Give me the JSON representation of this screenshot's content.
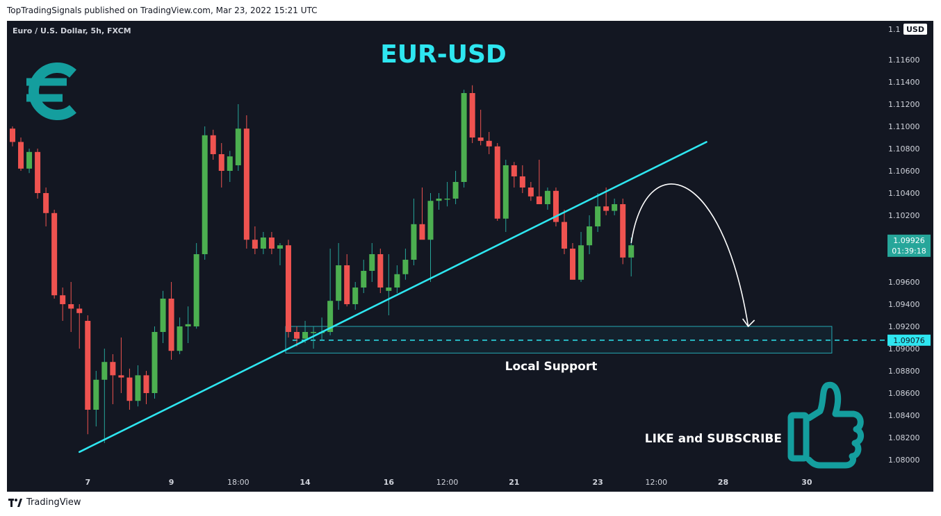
{
  "header": {
    "published_line": "TopTradingSignals published on TradingView.com, Mar 23, 2022 15:21 UTC"
  },
  "footer": {
    "brand": "TradingView"
  },
  "symbol_label": "Euro / U.S. Dollar, 5h, FXCM",
  "currency_badge": "USD",
  "icons": {
    "currency": "euro-icon",
    "like": "thumbs-up-icon",
    "brand": "tradingview-logo-icon"
  },
  "colors": {
    "background": "#131722",
    "up": "#26a69a",
    "up_body": "#4caf50",
    "down": "#ef5350",
    "trendline": "#2ee6f0",
    "annotation_title": "#2ee6f0",
    "euro_icon": "#149e9e"
  },
  "annotations": {
    "title": "EUR-USD",
    "support_label": "Local Support",
    "like_label": "LIKE and SUBSCRIBE"
  },
  "chart_data": {
    "type": "candlestick",
    "title": "",
    "xlabel": "",
    "ylabel": "",
    "ylim": [
      1.079,
      1.1195
    ],
    "grid": false,
    "y_ticks": [
      "1.11600",
      "1.11400",
      "1.11200",
      "1.11000",
      "1.10800",
      "1.10600",
      "1.10400",
      "1.10200",
      "1.10000",
      "1.09600",
      "1.09400",
      "1.09200",
      "1.09000",
      "1.08800",
      "1.08600",
      "1.08400",
      "1.08200",
      "1.08000"
    ],
    "y_tick_top_partial": "1.1",
    "x_ticks": [
      {
        "label": "7",
        "bar": 9
      },
      {
        "label": "9",
        "bar": 19
      },
      {
        "label": "18:00",
        "bar": 27
      },
      {
        "label": "14",
        "bar": 35
      },
      {
        "label": "16",
        "bar": 45
      },
      {
        "label": "12:00",
        "bar": 52
      },
      {
        "label": "21",
        "bar": 60
      },
      {
        "label": "23",
        "bar": 70
      },
      {
        "label": "12:00",
        "bar": 77
      },
      {
        "label": "28",
        "bar": 85
      },
      {
        "label": "30",
        "bar": 95
      }
    ],
    "candles": [
      [
        1.1098,
        1.11,
        1.1082,
        1.1086
      ],
      [
        1.1086,
        1.109,
        1.106,
        1.1062
      ],
      [
        1.1062,
        1.108,
        1.1058,
        1.1077
      ],
      [
        1.1077,
        1.108,
        1.1035,
        1.104
      ],
      [
        1.104,
        1.1045,
        1.101,
        1.1022
      ],
      [
        1.1022,
        1.1025,
        1.0945,
        1.0948
      ],
      [
        1.0948,
        1.0955,
        1.0925,
        1.094
      ],
      [
        1.094,
        1.096,
        1.0915,
        1.0936
      ],
      [
        1.0936,
        1.094,
        1.09,
        1.0932
      ],
      [
        1.0925,
        1.093,
        1.0823,
        1.0845
      ],
      [
        1.0845,
        1.088,
        1.083,
        1.0872
      ],
      [
        1.0872,
        1.09,
        1.0815,
        1.0888
      ],
      [
        1.0888,
        1.0895,
        1.085,
        1.0876
      ],
      [
        1.0876,
        1.091,
        1.086,
        1.0874
      ],
      [
        1.0874,
        1.0882,
        1.0845,
        1.0853
      ],
      [
        1.0853,
        1.0885,
        1.0848,
        1.0876
      ],
      [
        1.0876,
        1.088,
        1.085,
        1.086
      ],
      [
        1.086,
        1.092,
        1.0855,
        1.0915
      ],
      [
        1.0915,
        1.0952,
        1.0905,
        1.0945
      ],
      [
        1.0945,
        1.096,
        1.089,
        1.0898
      ],
      [
        1.0898,
        1.0928,
        1.0895,
        1.092
      ],
      [
        1.092,
        1.0938,
        1.0905,
        1.0922
      ],
      [
        1.092,
        1.0995,
        1.0918,
        1.0985
      ],
      [
        1.0985,
        1.11,
        1.098,
        1.1092
      ],
      [
        1.1092,
        1.1097,
        1.107,
        1.1075
      ],
      [
        1.1075,
        1.1085,
        1.1045,
        1.106
      ],
      [
        1.106,
        1.1078,
        1.105,
        1.1073
      ],
      [
        1.1065,
        1.112,
        1.106,
        1.1098
      ],
      [
        1.1098,
        1.111,
        1.099,
        1.0998
      ],
      [
        1.0998,
        1.101,
        1.0985,
        1.099
      ],
      [
        1.099,
        1.1005,
        1.0985,
        1.1
      ],
      [
        1.1,
        1.1005,
        1.0985,
        1.099
      ],
      [
        1.099,
        1.0995,
        1.0975,
        1.0993
      ],
      [
        1.0993,
        1.0998,
        1.091,
        1.0915
      ],
      [
        1.0915,
        1.092,
        1.0902,
        1.0909
      ],
      [
        1.0909,
        1.0925,
        1.0905,
        1.0915
      ],
      [
        1.0915,
        1.092,
        1.09,
        1.0915
      ],
      [
        1.0915,
        1.0928,
        1.0908,
        1.0915
      ],
      [
        1.0915,
        1.099,
        1.0912,
        1.0943
      ],
      [
        1.0943,
        1.0995,
        1.0935,
        1.0975
      ],
      [
        1.0975,
        1.0985,
        1.0938,
        1.094
      ],
      [
        1.094,
        1.096,
        1.0935,
        1.0955
      ],
      [
        1.0955,
        1.098,
        1.095,
        1.097
      ],
      [
        1.097,
        1.0995,
        1.096,
        1.0985
      ],
      [
        1.0985,
        1.099,
        1.095,
        1.0955
      ],
      [
        1.0952,
        1.0985,
        1.093,
        1.0955
      ],
      [
        1.0955,
        1.0975,
        1.095,
        1.0967
      ],
      [
        1.0967,
        1.099,
        1.0962,
        1.098
      ],
      [
        1.098,
        1.1035,
        1.0975,
        1.1012
      ],
      [
        1.1012,
        1.1045,
        1.1,
        1.0998
      ],
      [
        1.0998,
        1.104,
        1.096,
        1.1033
      ],
      [
        1.1033,
        1.104,
        1.1025,
        1.1035
      ],
      [
        1.1035,
        1.105,
        1.1028,
        1.1035
      ],
      [
        1.1035,
        1.106,
        1.103,
        1.105
      ],
      [
        1.105,
        1.1133,
        1.1045,
        1.113
      ],
      [
        1.113,
        1.1137,
        1.1085,
        1.109
      ],
      [
        1.109,
        1.1115,
        1.1083,
        1.1087
      ],
      [
        1.1087,
        1.1095,
        1.1075,
        1.1082
      ],
      [
        1.1082,
        1.1085,
        1.1015,
        1.1017
      ],
      [
        1.1017,
        1.107,
        1.1005,
        1.1065
      ],
      [
        1.1065,
        1.1068,
        1.1045,
        1.1055
      ],
      [
        1.1055,
        1.1065,
        1.104,
        1.1045
      ],
      [
        1.1045,
        1.105,
        1.1033,
        1.1037
      ],
      [
        1.1037,
        1.107,
        1.103,
        1.103
      ],
      [
        1.103,
        1.1045,
        1.1025,
        1.1042
      ],
      [
        1.1042,
        1.1045,
        1.101,
        1.1014
      ],
      [
        1.1014,
        1.1025,
        1.0985,
        1.099
      ],
      [
        1.099,
        1.0995,
        1.0965,
        1.0962
      ],
      [
        1.0962,
        1.1005,
        1.096,
        1.0993
      ],
      [
        1.0993,
        1.102,
        1.0985,
        1.101
      ],
      [
        1.101,
        1.104,
        1.1005,
        1.1028
      ],
      [
        1.1028,
        1.1045,
        1.102,
        1.1024
      ],
      [
        1.1024,
        1.1035,
        1.102,
        1.103
      ],
      [
        1.103,
        1.1035,
        1.0976,
        1.0982
      ],
      [
        1.0982,
        1.1,
        1.0965,
        1.0993
      ]
    ],
    "trendline": {
      "from_bar": 8,
      "from_price": 1.0807,
      "to_bar": 83,
      "to_price": 1.1086
    },
    "support_zone": {
      "from_bar": 33,
      "to_bar": 98,
      "top": 1.092,
      "bottom": 1.0896,
      "level": 1.09076
    },
    "projection_arrow": {
      "from_bar": 74,
      "from_price": 1.0995,
      "peak_bar": 79,
      "peak_price": 1.1043,
      "to_bar": 88,
      "to_price": 1.092
    },
    "last_price": {
      "value": "1.09926",
      "countdown": "01:39:18",
      "price": 1.09926
    },
    "level_label": {
      "value": "1.09076",
      "price": 1.09076
    }
  }
}
